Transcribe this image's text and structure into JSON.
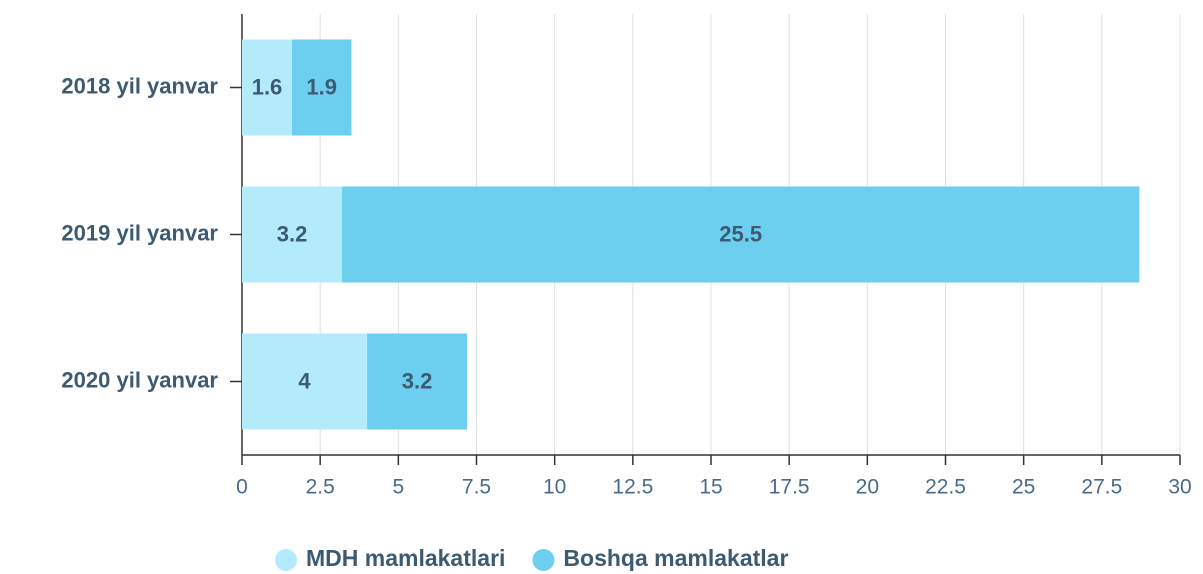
{
  "chart_data": {
    "type": "bar",
    "orientation": "horizontal",
    "stacked": true,
    "categories": [
      "2018 yil yanvar",
      "2019 yil yanvar",
      "2020 yil yanvar"
    ],
    "series": [
      {
        "name": "MDH mamlakatlari",
        "color": "#b3ebfc",
        "values": [
          1.6,
          3.2,
          4
        ]
      },
      {
        "name": "Boshqa mamlakatlar",
        "color": "#6dcff0",
        "values": [
          1.9,
          25.5,
          3.2
        ]
      }
    ],
    "xlim": [
      0,
      30
    ],
    "xticks": [
      0,
      2.5,
      5,
      7.5,
      10,
      12.5,
      15,
      17.5,
      20,
      22.5,
      25,
      27.5,
      30
    ],
    "grid": true,
    "legend": "bottom"
  }
}
